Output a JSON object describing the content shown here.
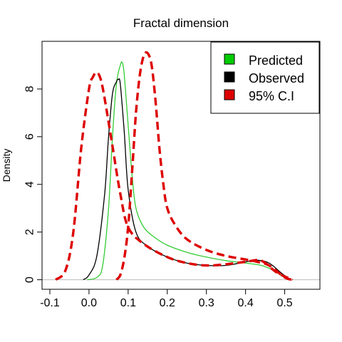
{
  "chart_data": {
    "type": "line",
    "title": "Fractal dimension",
    "xlabel": "",
    "ylabel": "Density",
    "xlim": [
      -0.12,
      0.59
    ],
    "ylim": [
      -0.4,
      10.0
    ],
    "x_ticks": [
      -0.1,
      0.0,
      0.1,
      0.2,
      0.3,
      0.4,
      0.5
    ],
    "x_tick_labels": [
      "-0.1",
      "0.0",
      "0.1",
      "0.2",
      "0.3",
      "0.4",
      "0.5"
    ],
    "y_ticks": [
      0,
      2,
      4,
      6,
      8
    ],
    "y_tick_labels": [
      "0",
      "2",
      "4",
      "6",
      "8"
    ],
    "legend_position": "top-right",
    "grid": false,
    "legend": [
      {
        "label": "Predicted",
        "color": "#00cc00"
      },
      {
        "label": "Observed",
        "color": "#000000"
      },
      {
        "label": "95% C.I",
        "color": "#dd0000"
      }
    ],
    "series": [
      {
        "name": "Predicted",
        "color": "#33cc33",
        "style": "solid",
        "x": [
          -0.005,
          0.02,
          0.035,
          0.05,
          0.06,
          0.07,
          0.08,
          0.085,
          0.09,
          0.1,
          0.11,
          0.12,
          0.14,
          0.17,
          0.2,
          0.25,
          0.3,
          0.35,
          0.4,
          0.44,
          0.47,
          0.5
        ],
        "y": [
          0.0,
          0.1,
          0.6,
          3.0,
          6.0,
          8.2,
          9.0,
          9.1,
          8.6,
          6.5,
          4.4,
          3.0,
          2.2,
          1.75,
          1.45,
          1.15,
          0.95,
          0.8,
          0.7,
          0.6,
          0.4,
          0.08
        ]
      },
      {
        "name": "Observed",
        "color": "#000000",
        "style": "solid",
        "x": [
          -0.015,
          0.0,
          0.02,
          0.04,
          0.05,
          0.06,
          0.07,
          0.075,
          0.08,
          0.09,
          0.1,
          0.12,
          0.15,
          0.2,
          0.25,
          0.3,
          0.35,
          0.4,
          0.43,
          0.46,
          0.49,
          0.51
        ],
        "y": [
          0.0,
          0.2,
          1.0,
          3.6,
          6.0,
          7.8,
          8.3,
          8.4,
          8.2,
          6.2,
          3.8,
          2.0,
          1.4,
          0.95,
          0.7,
          0.6,
          0.6,
          0.75,
          0.82,
          0.7,
          0.3,
          0.05
        ]
      },
      {
        "name": "95% C.I (lower)",
        "color": "#dd0000",
        "style": "dashed",
        "x": [
          -0.085,
          -0.06,
          -0.04,
          -0.02,
          0.0,
          0.01,
          0.02,
          0.03,
          0.04,
          0.06,
          0.08,
          0.1,
          0.14,
          0.2,
          0.25,
          0.3,
          0.35,
          0.4,
          0.44,
          0.48,
          0.52
        ],
        "y": [
          0.0,
          0.4,
          2.0,
          5.5,
          8.0,
          8.5,
          8.7,
          8.4,
          7.6,
          5.6,
          3.6,
          2.2,
          1.5,
          0.95,
          0.7,
          0.6,
          0.65,
          0.75,
          0.8,
          0.3,
          0.0
        ]
      },
      {
        "name": "95% C.I (upper)",
        "color": "#dd0000",
        "style": "dashed",
        "x": [
          0.07,
          0.08,
          0.09,
          0.1,
          0.11,
          0.12,
          0.13,
          0.14,
          0.15,
          0.16,
          0.17,
          0.18,
          0.19,
          0.2,
          0.22,
          0.25,
          0.3,
          0.35,
          0.4,
          0.43,
          0.46,
          0.5,
          0.52
        ],
        "y": [
          0.0,
          0.2,
          0.9,
          2.2,
          4.5,
          7.0,
          8.6,
          9.4,
          9.5,
          9.0,
          7.5,
          5.5,
          4.0,
          3.0,
          2.3,
          1.7,
          1.25,
          1.0,
          0.85,
          0.75,
          0.6,
          0.1,
          0.0
        ]
      }
    ]
  }
}
